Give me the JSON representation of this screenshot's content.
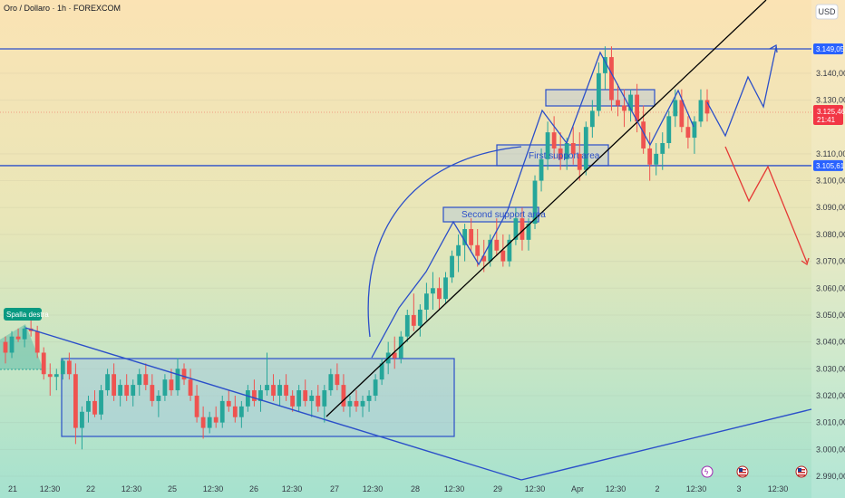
{
  "chart_data": {
    "type": "candlestick",
    "title": "Oro / Dollaro · 1h · FOREXCOM",
    "currency": "USD",
    "ylim": [
      2987,
      3160
    ],
    "y_ticks": [
      "3.149,05",
      "3.140,00",
      "3.130,00",
      "3.125,46",
      "3.110,00",
      "3.105,61",
      "3.100,00",
      "3.090,00",
      "3.080,00",
      "3.070,00",
      "3.060,00",
      "3.050,00",
      "3.040,00",
      "3.030,00",
      "3.020,00",
      "3.010,00",
      "3.000,00",
      "2.990,00"
    ],
    "x_ticks": [
      "21",
      "12:30",
      "22",
      "12:30",
      "25",
      "12:30",
      "26",
      "12:30",
      "27",
      "12:30",
      "28",
      "12:30",
      "29",
      "12:30",
      "Apr",
      "12:30",
      "2",
      "12:30",
      "3",
      "12:30"
    ],
    "price_label": {
      "value": "3.125,46",
      "countdown": "21:41"
    },
    "levels": [
      {
        "name": "resistance",
        "label": "3.149,05",
        "value": 3149.05
      },
      {
        "name": "support",
        "label": "3.105,61",
        "value": 3105.61
      }
    ],
    "annotations": [
      {
        "id": "spalla",
        "text": "Spalla destra"
      },
      {
        "id": "first",
        "text": "First support area"
      },
      {
        "id": "second",
        "text": "Second support area"
      }
    ],
    "colors": {
      "bull": "#26a69a",
      "bear": "#ef5350",
      "drawing": "#2b4fc9",
      "trend": "#000000",
      "bearish_path": "#e53935",
      "price_tag": "#f23645"
    },
    "candles": [
      [
        3040,
        3042,
        3032,
        3036
      ],
      [
        3036,
        3044,
        3034,
        3042
      ],
      [
        3042,
        3045,
        3040,
        3041
      ],
      [
        3041,
        3046,
        3038,
        3045
      ],
      [
        3045,
        3048,
        3042,
        3044
      ],
      [
        3044,
        3046,
        3034,
        3036
      ],
      [
        3036,
        3038,
        3026,
        3028
      ],
      [
        3028,
        3032,
        3020,
        3027
      ],
      [
        3027,
        3030,
        3022,
        3028
      ],
      [
        3028,
        3034,
        3026,
        3033
      ],
      [
        3033,
        3036,
        3026,
        3028
      ],
      [
        3028,
        3032,
        3002,
        3008
      ],
      [
        3008,
        3016,
        3000,
        3014
      ],
      [
        3014,
        3020,
        3010,
        3018
      ],
      [
        3018,
        3022,
        3012,
        3013
      ],
      [
        3013,
        3024,
        3011,
        3022
      ],
      [
        3022,
        3030,
        3020,
        3028
      ],
      [
        3028,
        3032,
        3018,
        3020
      ],
      [
        3020,
        3026,
        3016,
        3024
      ],
      [
        3024,
        3028,
        3018,
        3020
      ],
      [
        3020,
        3026,
        3016,
        3024
      ],
      [
        3024,
        3030,
        3020,
        3028
      ],
      [
        3028,
        3032,
        3022,
        3024
      ],
      [
        3024,
        3028,
        3016,
        3018
      ],
      [
        3018,
        3022,
        3012,
        3020
      ],
      [
        3020,
        3028,
        3018,
        3026
      ],
      [
        3026,
        3030,
        3020,
        3022
      ],
      [
        3022,
        3034,
        3020,
        3030
      ],
      [
        3030,
        3032,
        3024,
        3026
      ],
      [
        3026,
        3030,
        3018,
        3020
      ],
      [
        3020,
        3024,
        3010,
        3012
      ],
      [
        3012,
        3016,
        3004,
        3008
      ],
      [
        3008,
        3014,
        3006,
        3012
      ],
      [
        3012,
        3016,
        3008,
        3010
      ],
      [
        3010,
        3020,
        3008,
        3018
      ],
      [
        3018,
        3022,
        3014,
        3016
      ],
      [
        3016,
        3020,
        3010,
        3012
      ],
      [
        3012,
        3018,
        3008,
        3016
      ],
      [
        3016,
        3024,
        3014,
        3022
      ],
      [
        3022,
        3026,
        3016,
        3018
      ],
      [
        3018,
        3024,
        3014,
        3022
      ],
      [
        3022,
        3036,
        3020,
        3024
      ],
      [
        3024,
        3028,
        3018,
        3020
      ],
      [
        3020,
        3026,
        3016,
        3024
      ],
      [
        3024,
        3028,
        3018,
        3020
      ],
      [
        3020,
        3022,
        3014,
        3016
      ],
      [
        3016,
        3024,
        3014,
        3022
      ],
      [
        3022,
        3026,
        3016,
        3018
      ],
      [
        3018,
        3022,
        3012,
        3020
      ],
      [
        3020,
        3024,
        3014,
        3016
      ],
      [
        3016,
        3024,
        3010,
        3022
      ],
      [
        3022,
        3030,
        3020,
        3028
      ],
      [
        3028,
        3032,
        3022,
        3024
      ],
      [
        3024,
        3028,
        3014,
        3016
      ],
      [
        3016,
        3020,
        3012,
        3018
      ],
      [
        3018,
        3022,
        3014,
        3016
      ],
      [
        3016,
        3020,
        3012,
        3018
      ],
      [
        3018,
        3022,
        3014,
        3020
      ],
      [
        3020,
        3028,
        3018,
        3026
      ],
      [
        3026,
        3034,
        3024,
        3032
      ],
      [
        3032,
        3040,
        3028,
        3036
      ],
      [
        3036,
        3042,
        3030,
        3034
      ],
      [
        3034,
        3044,
        3032,
        3042
      ],
      [
        3042,
        3052,
        3040,
        3050
      ],
      [
        3050,
        3058,
        3044,
        3046
      ],
      [
        3046,
        3054,
        3042,
        3052
      ],
      [
        3052,
        3062,
        3048,
        3058
      ],
      [
        3058,
        3066,
        3052,
        3060
      ],
      [
        3060,
        3064,
        3052,
        3056
      ],
      [
        3056,
        3066,
        3054,
        3064
      ],
      [
        3064,
        3074,
        3062,
        3072
      ],
      [
        3072,
        3080,
        3066,
        3076
      ],
      [
        3076,
        3084,
        3070,
        3082
      ],
      [
        3082,
        3086,
        3074,
        3076
      ],
      [
        3076,
        3082,
        3068,
        3072
      ],
      [
        3072,
        3078,
        3066,
        3070
      ],
      [
        3070,
        3080,
        3068,
        3078
      ],
      [
        3078,
        3086,
        3072,
        3074
      ],
      [
        3074,
        3080,
        3068,
        3070
      ],
      [
        3070,
        3080,
        3068,
        3078
      ],
      [
        3078,
        3090,
        3076,
        3086
      ],
      [
        3086,
        3090,
        3074,
        3078
      ],
      [
        3078,
        3086,
        3074,
        3084
      ],
      [
        3084,
        3102,
        3082,
        3100
      ],
      [
        3100,
        3112,
        3096,
        3108
      ],
      [
        3108,
        3122,
        3104,
        3118
      ],
      [
        3118,
        3124,
        3108,
        3112
      ],
      [
        3112,
        3118,
        3104,
        3108
      ],
      [
        3108,
        3116,
        3104,
        3114
      ],
      [
        3114,
        3120,
        3106,
        3110
      ],
      [
        3110,
        3118,
        3100,
        3104
      ],
      [
        3104,
        3122,
        3102,
        3120
      ],
      [
        3120,
        3130,
        3116,
        3126
      ],
      [
        3126,
        3144,
        3124,
        3140
      ],
      [
        3140,
        3150,
        3134,
        3146
      ],
      [
        3146,
        3150,
        3126,
        3130
      ],
      [
        3130,
        3136,
        3124,
        3128
      ],
      [
        3128,
        3134,
        3120,
        3126
      ],
      [
        3126,
        3134,
        3122,
        3132
      ],
      [
        3132,
        3136,
        3118,
        3122
      ],
      [
        3122,
        3128,
        3110,
        3112
      ],
      [
        3112,
        3118,
        3100,
        3106
      ],
      [
        3106,
        3114,
        3102,
        3110
      ],
      [
        3110,
        3118,
        3104,
        3114
      ],
      [
        3114,
        3126,
        3112,
        3124
      ],
      [
        3124,
        3134,
        3120,
        3130
      ],
      [
        3130,
        3134,
        3118,
        3120
      ],
      [
        3120,
        3124,
        3112,
        3116
      ],
      [
        3116,
        3124,
        3110,
        3122
      ],
      [
        3122,
        3134,
        3120,
        3130
      ],
      [
        3130,
        3134,
        3122,
        3125
      ]
    ]
  }
}
